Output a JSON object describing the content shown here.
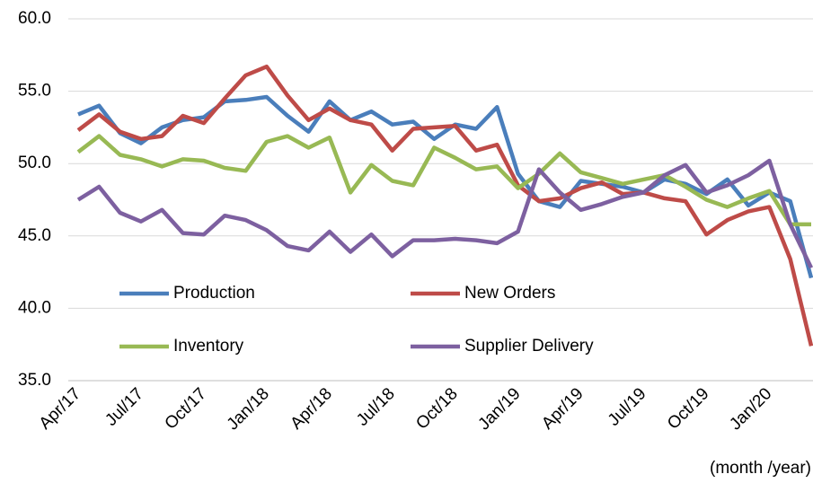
{
  "chart_data": {
    "type": "line",
    "x_label": "(month /year)",
    "categories": [
      "Apr/17",
      null,
      null,
      "Jul/17",
      null,
      null,
      "Oct/17",
      null,
      null,
      "Jan/18",
      null,
      null,
      "Apr/18",
      null,
      null,
      "Jul/18",
      null,
      null,
      "Oct/18",
      null,
      null,
      "Jan/19",
      null,
      null,
      "Apr/19",
      null,
      null,
      "Jul/19",
      null,
      null,
      "Oct/19",
      null,
      null,
      "Jan/20",
      null,
      null
    ],
    "series": [
      {
        "name": "Production",
        "color": "#4a7ebb",
        "values": [
          53.4,
          54.0,
          52.1,
          51.4,
          52.5,
          53.0,
          53.2,
          54.3,
          54.4,
          54.6,
          53.3,
          52.2,
          54.3,
          53.0,
          53.6,
          52.7,
          52.9,
          51.7,
          52.7,
          52.4,
          53.9,
          49.3,
          47.4,
          47.0,
          48.8,
          48.6,
          48.4,
          48.0,
          48.9,
          48.6,
          47.9,
          48.9,
          47.1,
          48.0,
          47.4,
          42.1
        ]
      },
      {
        "name": "New Orders",
        "color": "#be4b48",
        "values": [
          52.3,
          53.4,
          52.2,
          51.7,
          51.9,
          53.3,
          52.8,
          54.5,
          56.1,
          56.7,
          54.7,
          53.0,
          53.8,
          53.0,
          52.7,
          50.9,
          52.4,
          52.5,
          52.6,
          50.9,
          51.3,
          48.5,
          47.4,
          47.6,
          48.3,
          48.7,
          47.9,
          48.0,
          47.6,
          47.4,
          45.1,
          46.1,
          46.7,
          47.0,
          43.4,
          37.4
        ]
      },
      {
        "name": "Inventory",
        "color": "#98b954",
        "values": [
          50.8,
          51.9,
          50.6,
          50.3,
          49.8,
          50.3,
          50.2,
          49.7,
          49.5,
          51.5,
          51.9,
          51.1,
          51.8,
          48.0,
          49.9,
          48.8,
          48.5,
          51.1,
          50.4,
          49.6,
          49.8,
          48.3,
          49.3,
          50.7,
          49.4,
          49.0,
          48.6,
          48.9,
          49.2,
          48.4,
          47.5,
          47.0,
          47.6,
          48.1,
          45.8,
          45.8
        ]
      },
      {
        "name": "Supplier Delivery",
        "color": "#7d60a0",
        "values": [
          47.5,
          48.4,
          46.6,
          46.0,
          46.8,
          45.2,
          45.1,
          46.4,
          46.1,
          45.4,
          44.3,
          44.0,
          45.3,
          43.9,
          45.1,
          43.6,
          44.7,
          44.7,
          44.8,
          44.7,
          44.5,
          45.3,
          49.6,
          48.0,
          46.8,
          47.2,
          47.7,
          48.0,
          49.2,
          49.9,
          48.0,
          48.5,
          49.2,
          50.2,
          45.8,
          42.8
        ]
      }
    ],
    "ylim": [
      35,
      60
    ],
    "yticks": [
      {
        "value": 35,
        "label": "35.0"
      },
      {
        "value": 40,
        "label": "40.0"
      },
      {
        "value": 45,
        "label": "45.0"
      },
      {
        "value": 50,
        "label": "50.0"
      },
      {
        "value": 55,
        "label": "55.0"
      },
      {
        "value": 60,
        "label": "60.0"
      }
    ],
    "grid": true,
    "legend": "inside-bottom-left"
  }
}
